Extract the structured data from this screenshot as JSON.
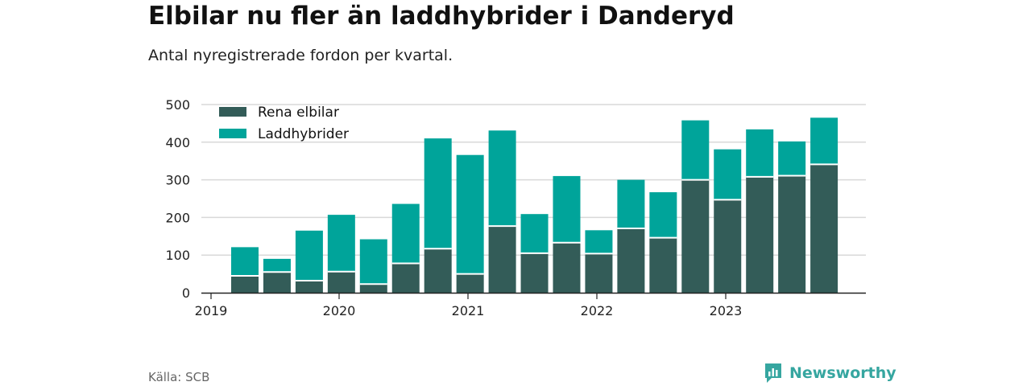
{
  "header": {
    "title": "Elbilar nu fler än laddhybrider i Danderyd",
    "subtitle": "Antal nyregistrerade fordon per kvartal."
  },
  "footer": {
    "source": "Källa: SCB",
    "brand": "Newsworthy"
  },
  "colors": {
    "elbilar": "#335c58",
    "laddhybrider": "#00a49a",
    "grid": "#d9d9d9",
    "axis": "#222222",
    "brand": "#36a6a0"
  },
  "chart_data": {
    "type": "bar",
    "stacked": true,
    "title": "Elbilar nu fler än laddhybrider i Danderyd",
    "subtitle": "Antal nyregistrerade fordon per kvartal.",
    "xlabel": "",
    "ylabel": "",
    "ylim": [
      0,
      500
    ],
    "yticks": [
      0,
      100,
      200,
      300,
      400,
      500
    ],
    "grid": true,
    "legend_position": "top-left",
    "categories": [
      "2019 Q2",
      "2019 Q3",
      "2019 Q4",
      "2020 Q1",
      "2020 Q2",
      "2020 Q3",
      "2020 Q4",
      "2021 Q1",
      "2021 Q2",
      "2021 Q3",
      "2021 Q4",
      "2022 Q1",
      "2022 Q2",
      "2022 Q3",
      "2022 Q4",
      "2023 Q1",
      "2023 Q2",
      "2023 Q3",
      "2023 Q4"
    ],
    "x_axis_labels": [
      "2019",
      "2020",
      "2021",
      "2022",
      "2023"
    ],
    "series": [
      {
        "name": "Rena elbilar",
        "values": [
          45,
          55,
          32,
          56,
          23,
          78,
          117,
          50,
          177,
          105,
          133,
          104,
          171,
          146,
          300,
          247,
          308,
          311,
          341
        ]
      },
      {
        "name": "Laddhybrider",
        "values": [
          76,
          35,
          133,
          151,
          119,
          158,
          293,
          316,
          254,
          104,
          177,
          62,
          129,
          121,
          158,
          134,
          126,
          91,
          124
        ]
      }
    ]
  }
}
